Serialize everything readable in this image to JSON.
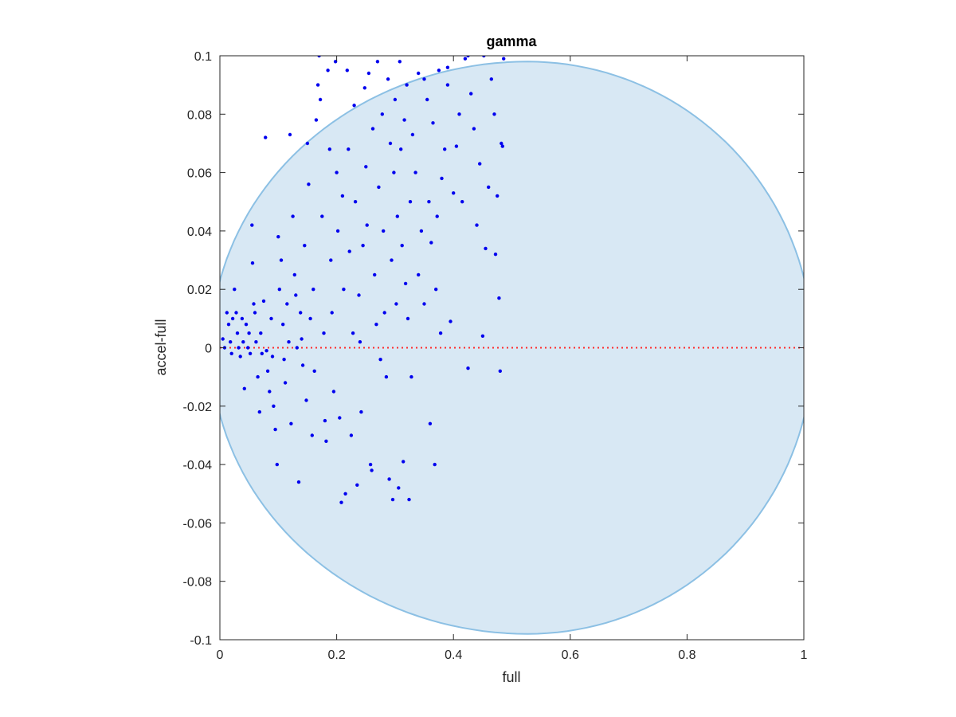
{
  "chart_data": {
    "type": "scatter",
    "title": "gamma",
    "xlabel": "full",
    "ylabel": "accel-full",
    "xlim": [
      0,
      1
    ],
    "ylim": [
      -0.1,
      0.1
    ],
    "xticks": [
      0,
      0.2,
      0.4,
      0.6,
      0.8,
      1
    ],
    "xtick_labels": [
      "0",
      "0.2",
      "0.4",
      "0.6",
      "0.8",
      "1"
    ],
    "yticks": [
      -0.1,
      -0.08,
      -0.06,
      -0.04,
      -0.02,
      0,
      0.02,
      0.04,
      0.06,
      0.08,
      0.1
    ],
    "ytick_labels": [
      "-0.1",
      "-0.08",
      "-0.06",
      "-0.04",
      "-0.02",
      "0",
      "0.02",
      "0.04",
      "0.06",
      "0.08",
      "0.1"
    ],
    "grid": false,
    "colors": {
      "points": "#0000ee",
      "region_fill": "#d8e8f4",
      "region_edge": "#8cc0e4",
      "zero_line": "#ff2a2a",
      "axes": "#262626"
    },
    "shaded_region": {
      "type": "ellipse",
      "x_range": [
        0,
        1
      ],
      "peak_x": 0.59,
      "y_range": [
        -0.098,
        0.098
      ]
    },
    "reference_line": {
      "y": 0,
      "style": "dotted"
    },
    "series": [
      {
        "points": [
          [
            0.005,
            0.003
          ],
          [
            0.008,
            0.0
          ],
          [
            0.012,
            0.012
          ],
          [
            0.015,
            0.008
          ],
          [
            0.018,
            0.002
          ],
          [
            0.02,
            -0.002
          ],
          [
            0.022,
            0.01
          ],
          [
            0.025,
            0.02
          ],
          [
            0.028,
            0.012
          ],
          [
            0.03,
            0.005
          ],
          [
            0.032,
            0.0
          ],
          [
            0.035,
            -0.003
          ],
          [
            0.038,
            0.01
          ],
          [
            0.04,
            0.002
          ],
          [
            0.042,
            -0.014
          ],
          [
            0.045,
            0.008
          ],
          [
            0.048,
            0.0
          ],
          [
            0.05,
            0.005
          ],
          [
            0.052,
            -0.002
          ],
          [
            0.055,
            0.042
          ],
          [
            0.056,
            0.029
          ],
          [
            0.058,
            0.015
          ],
          [
            0.06,
            0.012
          ],
          [
            0.062,
            0.002
          ],
          [
            0.065,
            -0.01
          ],
          [
            0.068,
            -0.022
          ],
          [
            0.07,
            0.005
          ],
          [
            0.072,
            -0.002
          ],
          [
            0.075,
            0.016
          ],
          [
            0.078,
            0.072
          ],
          [
            0.08,
            -0.001
          ],
          [
            0.082,
            -0.008
          ],
          [
            0.085,
            -0.015
          ],
          [
            0.088,
            0.01
          ],
          [
            0.09,
            -0.003
          ],
          [
            0.092,
            -0.02
          ],
          [
            0.095,
            -0.028
          ],
          [
            0.098,
            -0.04
          ],
          [
            0.1,
            0.038
          ],
          [
            0.102,
            0.02
          ],
          [
            0.105,
            0.03
          ],
          [
            0.108,
            0.008
          ],
          [
            0.11,
            -0.004
          ],
          [
            0.112,
            -0.012
          ],
          [
            0.115,
            0.015
          ],
          [
            0.118,
            0.002
          ],
          [
            0.12,
            0.073
          ],
          [
            0.122,
            -0.026
          ],
          [
            0.125,
            0.045
          ],
          [
            0.128,
            0.025
          ],
          [
            0.13,
            0.018
          ],
          [
            0.132,
            0.0
          ],
          [
            0.135,
            -0.046
          ],
          [
            0.138,
            0.012
          ],
          [
            0.14,
            0.003
          ],
          [
            0.142,
            -0.006
          ],
          [
            0.145,
            0.035
          ],
          [
            0.148,
            -0.018
          ],
          [
            0.15,
            0.07
          ],
          [
            0.152,
            0.056
          ],
          [
            0.155,
            0.01
          ],
          [
            0.158,
            -0.03
          ],
          [
            0.16,
            0.02
          ],
          [
            0.162,
            -0.008
          ],
          [
            0.165,
            0.078
          ],
          [
            0.168,
            0.09
          ],
          [
            0.17,
            0.1
          ],
          [
            0.172,
            0.085
          ],
          [
            0.175,
            0.045
          ],
          [
            0.178,
            0.005
          ],
          [
            0.18,
            -0.025
          ],
          [
            0.182,
            -0.032
          ],
          [
            0.185,
            0.095
          ],
          [
            0.188,
            0.068
          ],
          [
            0.19,
            0.03
          ],
          [
            0.192,
            0.012
          ],
          [
            0.195,
            -0.015
          ],
          [
            0.198,
            0.098
          ],
          [
            0.2,
            0.06
          ],
          [
            0.202,
            0.04
          ],
          [
            0.205,
            -0.024
          ],
          [
            0.208,
            -0.053
          ],
          [
            0.21,
            0.052
          ],
          [
            0.212,
            0.02
          ],
          [
            0.215,
            -0.05
          ],
          [
            0.218,
            0.095
          ],
          [
            0.22,
            0.068
          ],
          [
            0.222,
            0.033
          ],
          [
            0.225,
            -0.03
          ],
          [
            0.228,
            0.005
          ],
          [
            0.23,
            0.083
          ],
          [
            0.232,
            0.05
          ],
          [
            0.235,
            -0.047
          ],
          [
            0.238,
            0.018
          ],
          [
            0.24,
            0.002
          ],
          [
            0.242,
            -0.022
          ],
          [
            0.245,
            0.035
          ],
          [
            0.248,
            0.089
          ],
          [
            0.25,
            0.062
          ],
          [
            0.252,
            0.042
          ],
          [
            0.255,
            0.094
          ],
          [
            0.258,
            -0.04
          ],
          [
            0.26,
            -0.042
          ],
          [
            0.262,
            0.075
          ],
          [
            0.265,
            0.025
          ],
          [
            0.268,
            0.008
          ],
          [
            0.27,
            0.098
          ],
          [
            0.272,
            0.055
          ],
          [
            0.275,
            -0.004
          ],
          [
            0.278,
            0.08
          ],
          [
            0.28,
            0.04
          ],
          [
            0.282,
            0.012
          ],
          [
            0.285,
            -0.01
          ],
          [
            0.288,
            0.092
          ],
          [
            0.29,
            -0.045
          ],
          [
            0.292,
            0.07
          ],
          [
            0.294,
            0.03
          ],
          [
            0.296,
            -0.052
          ],
          [
            0.298,
            0.06
          ],
          [
            0.3,
            0.085
          ],
          [
            0.302,
            0.015
          ],
          [
            0.304,
            0.045
          ],
          [
            0.306,
            -0.048
          ],
          [
            0.308,
            0.098
          ],
          [
            0.31,
            0.068
          ],
          [
            0.312,
            0.035
          ],
          [
            0.314,
            -0.039
          ],
          [
            0.316,
            0.078
          ],
          [
            0.318,
            0.022
          ],
          [
            0.32,
            0.09
          ],
          [
            0.322,
            0.01
          ],
          [
            0.324,
            -0.052
          ],
          [
            0.326,
            0.05
          ],
          [
            0.328,
            -0.01
          ],
          [
            0.33,
            0.073
          ],
          [
            0.335,
            0.06
          ],
          [
            0.34,
            0.025
          ],
          [
            0.345,
            0.04
          ],
          [
            0.35,
            0.015
          ],
          [
            0.355,
            0.085
          ],
          [
            0.358,
            0.05
          ],
          [
            0.36,
            -0.026
          ],
          [
            0.362,
            0.036
          ],
          [
            0.365,
            0.077
          ],
          [
            0.368,
            -0.04
          ],
          [
            0.37,
            0.02
          ],
          [
            0.372,
            0.045
          ],
          [
            0.375,
            0.095
          ],
          [
            0.378,
            0.005
          ],
          [
            0.38,
            0.058
          ],
          [
            0.385,
            0.068
          ],
          [
            0.39,
            0.09
          ],
          [
            0.395,
            0.009
          ],
          [
            0.4,
            0.053
          ],
          [
            0.405,
            0.069
          ],
          [
            0.41,
            0.08
          ],
          [
            0.415,
            0.05
          ],
          [
            0.42,
            0.099
          ],
          [
            0.425,
            -0.007
          ],
          [
            0.43,
            0.087
          ],
          [
            0.435,
            0.075
          ],
          [
            0.44,
            0.042
          ],
          [
            0.445,
            0.063
          ],
          [
            0.45,
            0.004
          ],
          [
            0.452,
            0.1
          ],
          [
            0.455,
            0.034
          ],
          [
            0.46,
            0.055
          ],
          [
            0.465,
            0.092
          ],
          [
            0.47,
            0.08
          ],
          [
            0.472,
            0.032
          ],
          [
            0.475,
            0.052
          ],
          [
            0.478,
            0.017
          ],
          [
            0.48,
            -0.008
          ],
          [
            0.482,
            0.07
          ],
          [
            0.484,
            0.069
          ],
          [
            0.486,
            0.099
          ],
          [
            0.425,
            0.1
          ],
          [
            0.39,
            0.096
          ],
          [
            0.35,
            0.092
          ],
          [
            0.34,
            0.094
          ]
        ]
      }
    ]
  }
}
